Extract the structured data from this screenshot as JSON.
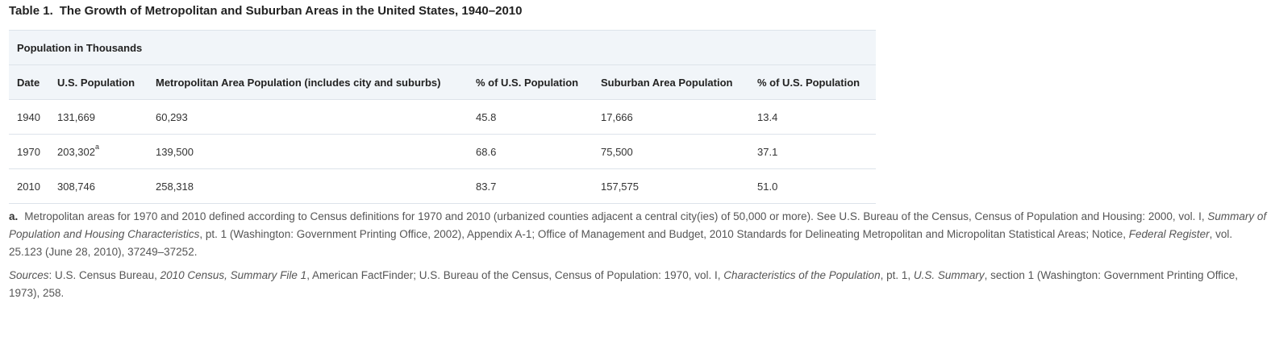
{
  "table": {
    "number": "Table 1.",
    "title": "The Growth of Metropolitan and Suburban Areas in the United States, 1940–2010",
    "group_header": "Population in Thousands",
    "columns": [
      "Date",
      "U.S. Population",
      "Metropolitan Area Population (includes city and suburbs)",
      "% of U.S. Population",
      "Suburban Area Population",
      "% of U.S. Population"
    ],
    "rows": [
      {
        "date": "1940",
        "us_population": "131,669",
        "us_population_note": "",
        "metro": "60,293",
        "metro_pct": "45.8",
        "suburban": "17,666",
        "suburban_pct": "13.4"
      },
      {
        "date": "1970",
        "us_population": "203,302",
        "us_population_note": "a",
        "metro": "139,500",
        "metro_pct": "68.6",
        "suburban": "75,500",
        "suburban_pct": "37.1"
      },
      {
        "date": "2010",
        "us_population": "308,746",
        "us_population_note": "",
        "metro": "258,318",
        "metro_pct": "83.7",
        "suburban": "157,575",
        "suburban_pct": "51.0"
      }
    ]
  },
  "footnote": {
    "label": "a.",
    "text_1": "Metropolitan areas for 1970 and 2010 defined according to Census definitions for 1970 and 2010 (urbanized counties adjacent a central city(ies) of 50,000 or more). See U.S. Bureau of the Census, Census of Population and Housing: 2000, vol. I, ",
    "italic_1": "Summary of Population and Housing Characteristics",
    "text_2": ", pt. 1 (Washington: Government Printing Office, 2002), Appendix A-1; Office of Management and Budget, 2010 Standards for Delineating Metropolitan and Micropolitan Statistical Areas; Notice, ",
    "italic_2": "Federal Register",
    "text_3": ", vol. 25.123 (June 28, 2010), 37249–37252."
  },
  "sources": {
    "label": "Sources",
    "text_1": ": U.S. Census Bureau, ",
    "italic_1": "2010 Census, Summary File 1",
    "text_2": ", American FactFinder; U.S. Bureau of the Census, Census of Population: 1970, vol. I, ",
    "italic_2": "Characteristics of the Population",
    "text_3": ", pt. 1, ",
    "italic_3": "U.S. Summary",
    "text_4": ", section 1 (Washington: Government Printing Office, 1973), 258."
  }
}
